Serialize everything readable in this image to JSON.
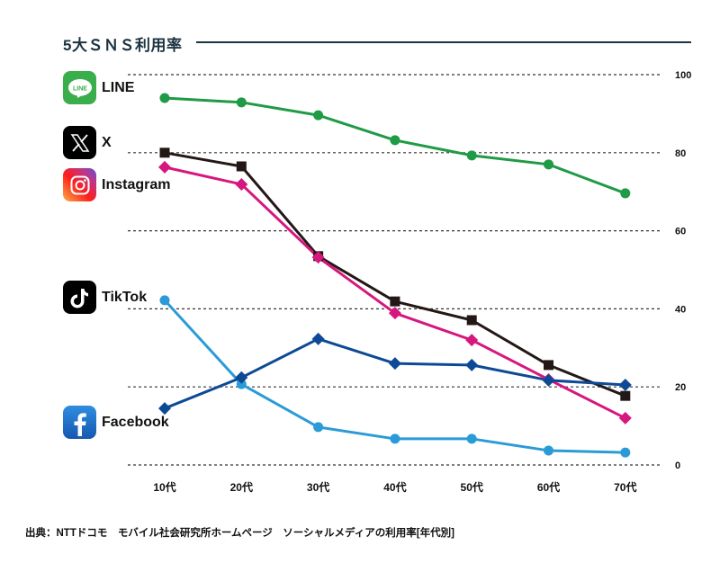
{
  "chart_data": {
    "type": "line",
    "title": "5大ＳＮＳ利用率",
    "categories": [
      "10代",
      "20代",
      "30代",
      "40代",
      "50代",
      "60代",
      "70代"
    ],
    "ylim": [
      0,
      100
    ],
    "yticks": [
      0,
      20,
      40,
      60,
      80,
      100
    ],
    "grid": true,
    "legend": "left",
    "series": [
      {
        "name": "LINE",
        "color": "#1f9a45",
        "marker": "circle",
        "values": [
          94.0,
          92.9,
          89.6,
          83.2,
          79.3,
          77.0,
          69.6
        ]
      },
      {
        "name": "X",
        "color": "#231815",
        "marker": "square",
        "values": [
          80.0,
          76.5,
          53.5,
          41.9,
          37.1,
          25.6,
          17.7
        ]
      },
      {
        "name": "Instagram",
        "color": "#d6177e",
        "marker": "diamond",
        "values": [
          76.3,
          71.9,
          53.2,
          38.9,
          32.0,
          21.9,
          12.0
        ]
      },
      {
        "name": "TikTok",
        "color": "#2a9bd7",
        "marker": "circle",
        "values": [
          42.2,
          20.7,
          9.7,
          6.7,
          6.7,
          3.7,
          3.2
        ]
      },
      {
        "name": "Facebook",
        "color": "#0d4a96",
        "marker": "diamond",
        "values": [
          14.5,
          22.4,
          32.3,
          26.0,
          25.6,
          21.7,
          20.5
        ]
      }
    ],
    "source": "出典：NTTドコモ　モバイル社会研究所ホームページ　ソーシャルメディアの利用率[年代別]"
  },
  "legend": [
    {
      "label": "LINE",
      "icon": "line-logo-icon",
      "icon_text": "LINE"
    },
    {
      "label": "X",
      "icon": "x-logo-icon"
    },
    {
      "label": "Instagram",
      "icon": "instagram-logo-icon"
    },
    {
      "label": "TikTok",
      "icon": "tiktok-logo-icon"
    },
    {
      "label": "Facebook",
      "icon": "facebook-logo-icon"
    }
  ]
}
